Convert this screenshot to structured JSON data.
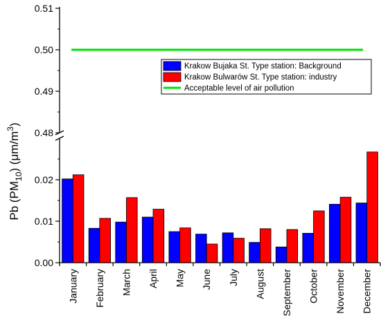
{
  "chart_data": {
    "type": "bar",
    "categories": [
      "January",
      "February",
      "March",
      "April",
      "May",
      "June",
      "July",
      "August",
      "September",
      "October",
      "November",
      "December"
    ],
    "series": [
      {
        "name": "Krakow Bujaka St. Type station: Background",
        "color": "#0000ff",
        "values": [
          0.0202,
          0.0083,
          0.0098,
          0.011,
          0.0075,
          0.0069,
          0.0072,
          0.0049,
          0.0038,
          0.0071,
          0.0141,
          0.0144
        ]
      },
      {
        "name": "Krakow Bulwarów St.  Type station: industry",
        "color": "#ff0000",
        "values": [
          0.0212,
          0.0107,
          0.0157,
          0.0129,
          0.0084,
          0.0045,
          0.0059,
          0.0082,
          0.008,
          0.0125,
          0.0158,
          0.0267
        ]
      }
    ],
    "reference_line": {
      "name": "Acceptable level of air pollution",
      "value": 0.5,
      "color": "#00e000"
    },
    "ylabel": {
      "pre": "Pb (PM",
      "sub": "10",
      "mid": ") (μm/m",
      "sup": "3",
      "post": ")"
    },
    "y_lower": {
      "ylim": [
        0,
        0.03
      ],
      "ticks": [
        "0.00",
        "0.01",
        "0.02"
      ]
    },
    "y_upper": {
      "ylim": [
        0.48,
        0.51
      ],
      "ticks": [
        "0.48",
        "0.49",
        "0.50",
        "0.51"
      ]
    },
    "axis_break": true,
    "legend_position": "top-right",
    "grid": false
  }
}
